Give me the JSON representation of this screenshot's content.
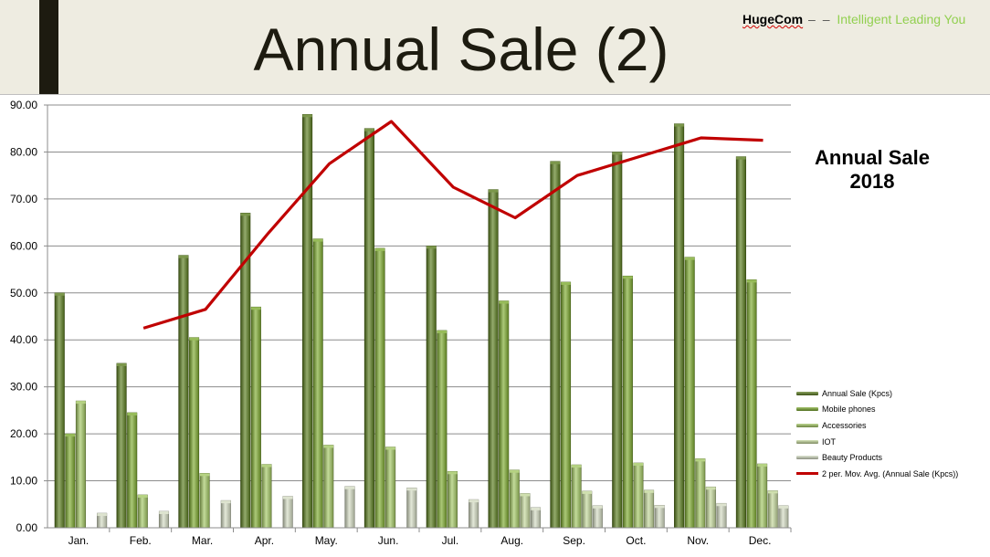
{
  "header": {
    "title": "Annual Sale (2)",
    "brand_name": "HugeCom",
    "brand_dash": "– –",
    "brand_slogan": "Intelligent Leading You"
  },
  "chart_data": {
    "type": "bar",
    "title": "Annual Sale\n2018",
    "categories": [
      "Jan.",
      "Feb.",
      "Mar.",
      "Apr.",
      "May.",
      "Jun.",
      "Jul.",
      "Aug.",
      "Sep.",
      "Oct.",
      "Nov.",
      "Dec."
    ],
    "ylim": [
      0,
      90
    ],
    "yticks": [
      "0.00",
      "10.00",
      "20.00",
      "30.00",
      "40.00",
      "50.00",
      "60.00",
      "70.00",
      "80.00",
      "90.00"
    ],
    "grid": true,
    "legend_position": "right",
    "series": [
      {
        "name": "Annual Sale (Kpcs)",
        "values": [
          50,
          35,
          58,
          67,
          88,
          85,
          60,
          72,
          78,
          80,
          86,
          79
        ],
        "color": "#5a7d1e"
      },
      {
        "name": "Mobile phones",
        "values": [
          20,
          24.5,
          40.5,
          47,
          61.5,
          59.5,
          42,
          48.3,
          52.3,
          53.6,
          57.6,
          52.8
        ],
        "color": "#7dab2f"
      },
      {
        "name": "Accessories",
        "values": [
          27,
          7,
          11.6,
          13.5,
          17.6,
          17.2,
          12,
          12.3,
          13.4,
          13.8,
          14.7,
          13.6
        ],
        "color": "#a3c763"
      },
      {
        "name": "IOT",
        "values": [
          0,
          0,
          0,
          0,
          0,
          0,
          0,
          7.3,
          7.8,
          8,
          8.7,
          7.9
        ],
        "color": "#c3d79a"
      },
      {
        "name": "Beauty Products",
        "values": [
          3.1,
          3.5,
          5.8,
          6.7,
          8.8,
          8.5,
          6,
          4.3,
          4.7,
          4.8,
          5.2,
          4.7
        ],
        "color": "#d4dcc3"
      }
    ],
    "trendline": {
      "name": "2 per. Mov. Avg. (Annual Sale (Kpcs))",
      "color": "#c00000",
      "values": [
        null,
        42.5,
        46.5,
        62.5,
        77.5,
        86.5,
        72.5,
        66,
        75,
        79,
        83,
        82.5
      ]
    }
  }
}
